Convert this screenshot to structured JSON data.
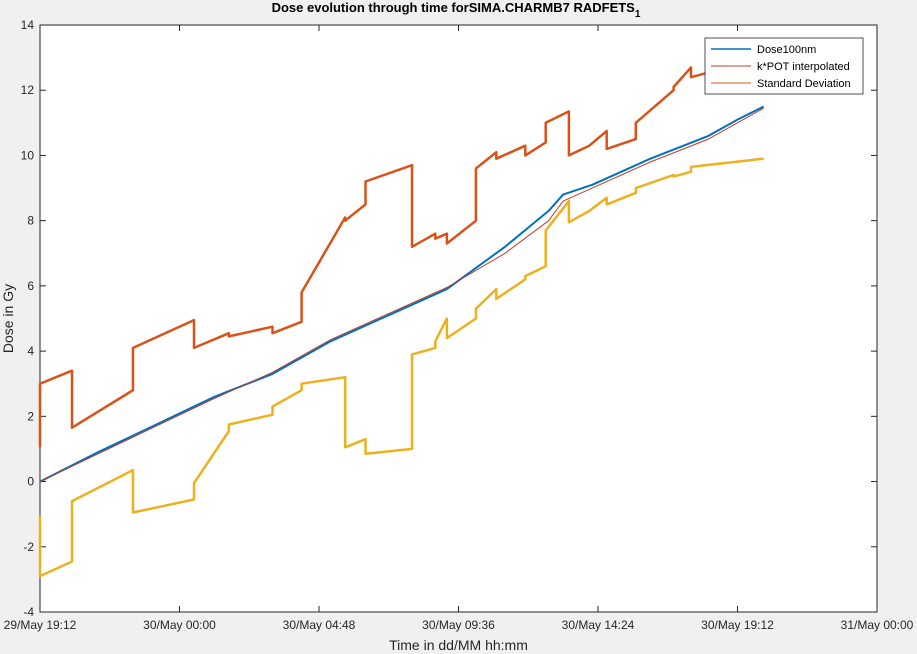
{
  "chart_data": {
    "type": "line",
    "title": "Dose evolution through time forSIMA.CHARMB7 RADFETS",
    "title_subscript": "1",
    "xlabel": "Time in dd/MM hh:mm",
    "ylabel": "Dose in Gy",
    "xlim_hours": [
      0,
      28.8
    ],
    "ylim": [
      -4,
      14
    ],
    "yticks": [
      -4,
      -2,
      0,
      2,
      4,
      6,
      8,
      10,
      12,
      14
    ],
    "xticks": [
      {
        "h": 0,
        "label": "29/May 19:12"
      },
      {
        "h": 4.8,
        "label": "30/May 00:00"
      },
      {
        "h": 9.6,
        "label": "30/May 04:48"
      },
      {
        "h": 14.4,
        "label": "30/May 09:36"
      },
      {
        "h": 19.2,
        "label": "30/May 14:24"
      },
      {
        "h": 24.0,
        "label": "30/May 19:12"
      },
      {
        "h": 28.8,
        "label": "31/May 00:00"
      }
    ],
    "legend_position": "top-right",
    "series": [
      {
        "name": "Dose100nm",
        "color": "#0072BD",
        "x": [
          0.0,
          2.0,
          4.0,
          6.0,
          8.0,
          10.0,
          12.0,
          14.0,
          16.0,
          17.5,
          18.0,
          19.0,
          21.0,
          23.0,
          24.0,
          24.9
        ],
        "y": [
          0.0,
          0.9,
          1.75,
          2.6,
          3.3,
          4.3,
          5.1,
          5.9,
          7.2,
          8.3,
          8.8,
          9.1,
          9.9,
          10.6,
          11.1,
          11.5
        ]
      },
      {
        "name": "k*POT interpolated",
        "color": "#C0392B",
        "x": [
          0.0,
          2.0,
          4.0,
          6.0,
          8.0,
          10.0,
          12.0,
          14.0,
          16.0,
          17.5,
          18.0,
          19.0,
          21.0,
          23.0,
          24.0,
          24.9
        ],
        "y": [
          0.0,
          0.85,
          1.7,
          2.55,
          3.35,
          4.35,
          5.15,
          5.95,
          7.0,
          8.0,
          8.6,
          9.0,
          9.8,
          10.5,
          11.0,
          11.45
        ]
      },
      {
        "name": "Standard Deviation",
        "color": "#D95319",
        "x": [
          0.0,
          0.0,
          1.1,
          1.1,
          3.2,
          3.2,
          5.3,
          5.3,
          6.5,
          6.5,
          8.0,
          8.0,
          9.0,
          9.0,
          10.5,
          10.5,
          11.2,
          11.2,
          12.8,
          12.8,
          13.6,
          13.6,
          14.0,
          14.0,
          15.0,
          15.0,
          15.7,
          15.7,
          16.7,
          16.7,
          17.4,
          17.4,
          18.2,
          18.2,
          18.9,
          18.9,
          19.5,
          19.5,
          20.5,
          20.5,
          21.8,
          21.8,
          22.4,
          22.4,
          24.9
        ],
        "y": [
          1.05,
          3.0,
          3.4,
          1.65,
          2.8,
          4.1,
          4.95,
          4.1,
          4.55,
          4.45,
          4.75,
          4.55,
          4.9,
          5.8,
          8.1,
          8.0,
          8.5,
          9.2,
          9.7,
          7.2,
          7.6,
          7.45,
          7.6,
          7.3,
          8.0,
          9.6,
          10.1,
          9.9,
          10.3,
          10.0,
          10.4,
          11.0,
          11.35,
          10.0,
          10.3,
          10.3,
          10.75,
          10.2,
          10.5,
          11.0,
          12.0,
          12.1,
          12.7,
          12.4,
          13.0
        ]
      },
      {
        "name": "",
        "color": "#EDB120",
        "x": [
          0.0,
          0.0,
          1.1,
          1.1,
          3.2,
          3.2,
          5.3,
          5.3,
          6.5,
          6.5,
          8.0,
          8.0,
          9.0,
          9.0,
          10.5,
          10.5,
          11.2,
          11.2,
          12.8,
          12.8,
          13.6,
          13.6,
          14.0,
          14.0,
          15.0,
          15.0,
          15.7,
          15.7,
          16.7,
          16.7,
          17.4,
          17.4,
          18.2,
          18.2,
          18.9,
          18.9,
          19.5,
          19.5,
          20.5,
          20.5,
          21.8,
          21.8,
          22.4,
          22.4,
          24.9
        ],
        "y": [
          -1.05,
          -2.9,
          -2.45,
          -0.6,
          0.35,
          -0.95,
          -0.55,
          -0.05,
          1.55,
          1.75,
          2.05,
          2.3,
          2.8,
          3.0,
          3.2,
          1.05,
          1.3,
          0.85,
          1.0,
          3.9,
          4.1,
          4.3,
          5.0,
          4.4,
          5.0,
          5.3,
          5.9,
          5.6,
          6.2,
          6.3,
          6.6,
          7.7,
          8.6,
          7.95,
          8.3,
          8.3,
          8.7,
          8.5,
          8.85,
          9.0,
          9.4,
          9.35,
          9.5,
          9.65,
          9.9
        ]
      }
    ]
  }
}
